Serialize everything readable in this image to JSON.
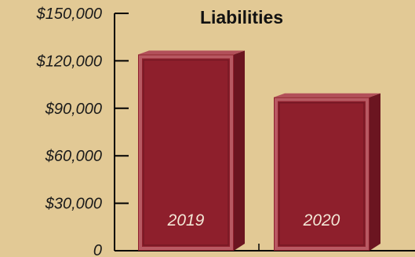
{
  "chart_data": {
    "type": "bar",
    "title": "Liabilities",
    "categories": [
      "2019",
      "2020"
    ],
    "values": [
      124000,
      97000
    ],
    "ylim": [
      0,
      150000
    ],
    "yticks": [
      {
        "value": 0,
        "label": "0"
      },
      {
        "value": 30000,
        "label": "$30,000"
      },
      {
        "value": 60000,
        "label": "$60,000"
      },
      {
        "value": 90000,
        "label": "$90,000"
      },
      {
        "value": 120000,
        "label": "$120,000"
      },
      {
        "value": 150000,
        "label": "$150,000"
      }
    ],
    "grid": false,
    "style": "3d",
    "colors": {
      "background": "#e2c995",
      "bar": "#8e1f2c",
      "bar_side": "#6b1520",
      "bar_top": "#b2505a",
      "axis": "#000000"
    }
  }
}
